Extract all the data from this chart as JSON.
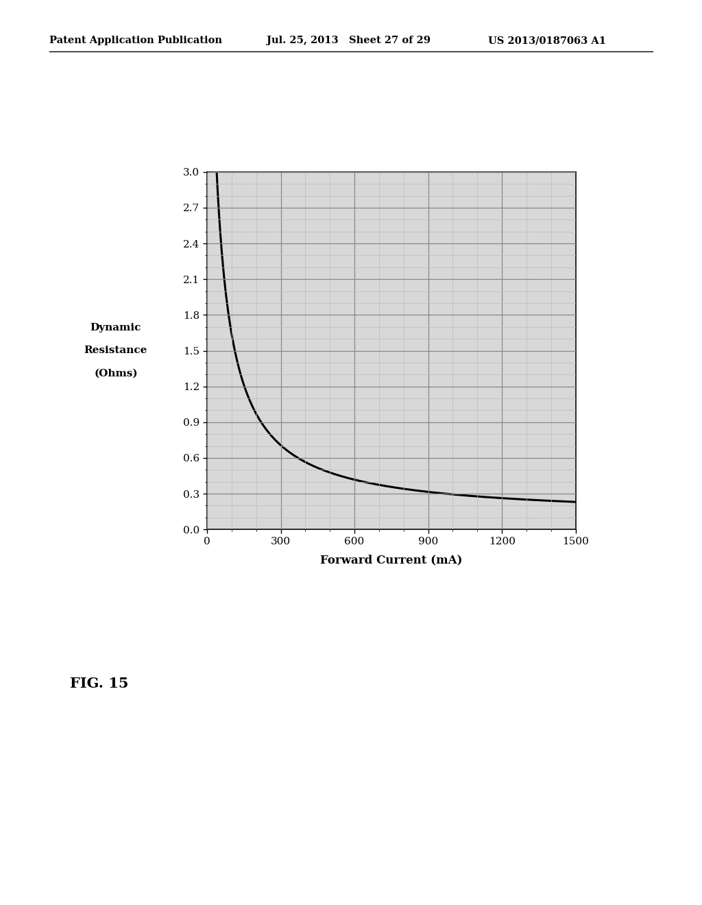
{
  "header_left": "Patent Application Publication",
  "header_center": "Jul. 25, 2013   Sheet 27 of 29",
  "header_right": "US 2013/0187063 A1",
  "ylabel_line1": "Dynamic",
  "ylabel_line2": "Resistance",
  "ylabel_line3": "(Ohms)",
  "xlabel": "Forward Current (mA)",
  "figure_label": "FIG. 15",
  "xlim": [
    0,
    1500
  ],
  "ylim": [
    0.0,
    3.0
  ],
  "xticks": [
    0,
    300,
    600,
    900,
    1200,
    1500
  ],
  "yticks": [
    0.0,
    0.3,
    0.6,
    0.9,
    1.2,
    1.5,
    1.8,
    2.1,
    2.4,
    2.7,
    3.0
  ],
  "curve_color": "#000000",
  "curve_linewidth": 2.2,
  "major_grid_color": "#888888",
  "minor_grid_color": "#bbbbbb",
  "background_color": "#ffffff",
  "plot_bg_color": "#d8d8d8",
  "curve_a": 200,
  "curve_b": 30,
  "curve_c": 0.1,
  "I_start": 28,
  "I_end": 1500
}
